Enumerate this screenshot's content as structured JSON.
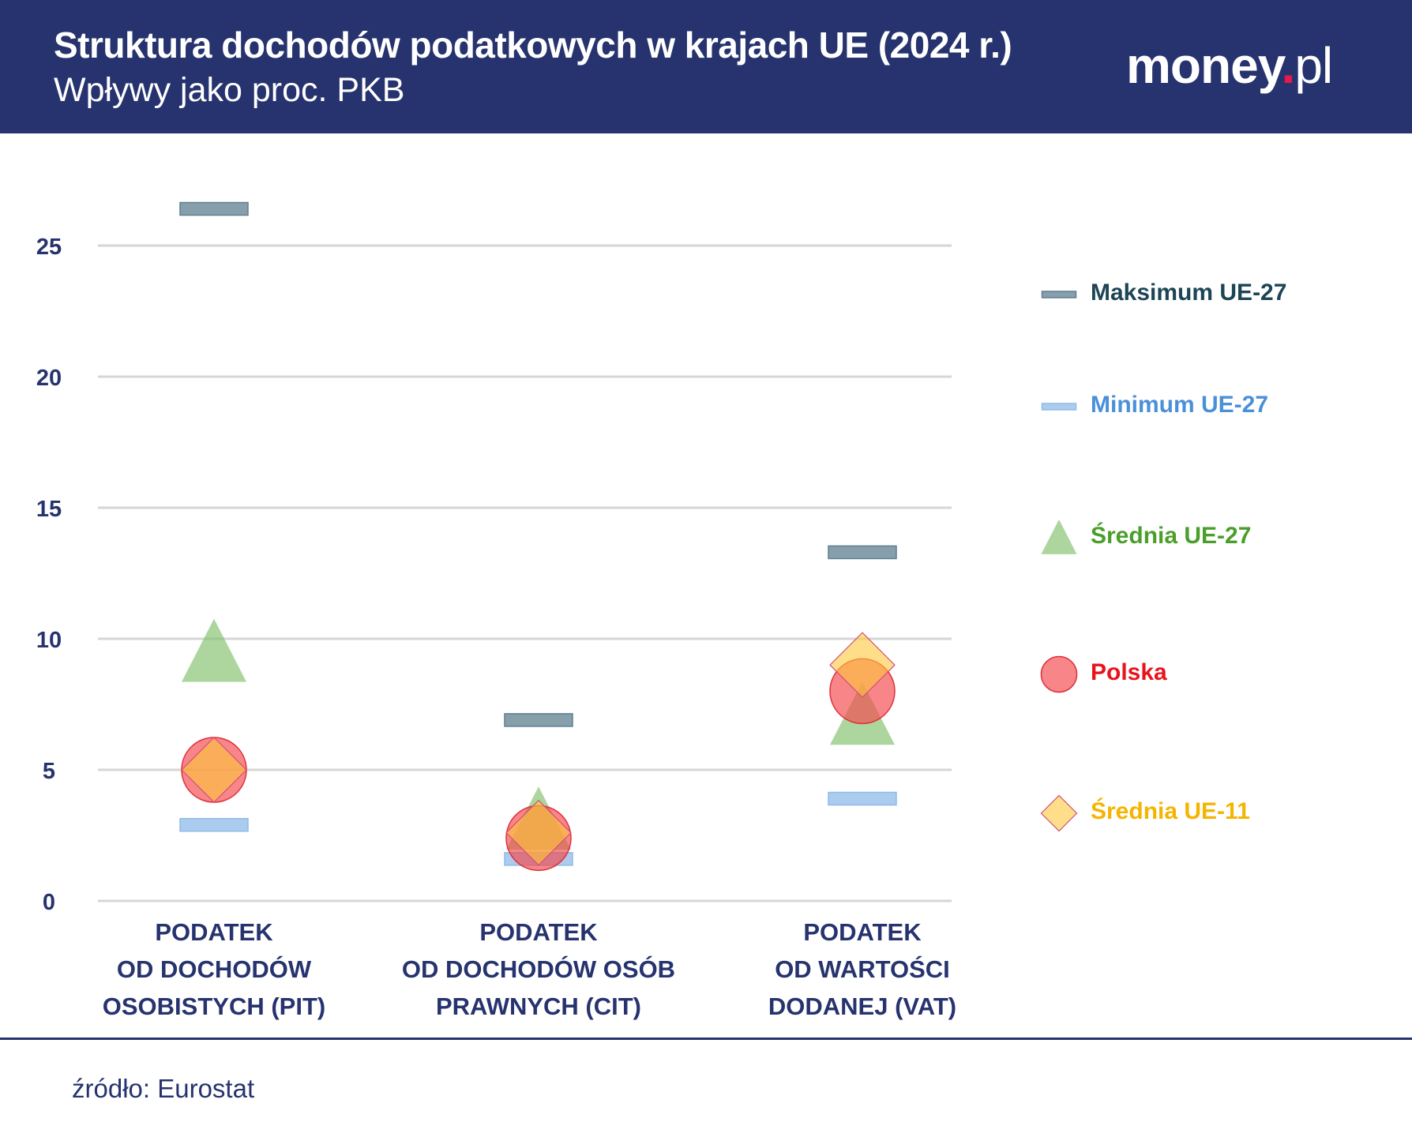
{
  "header": {
    "title": "Struktura dochodów podatkowych w krajach UE (2024 r.)",
    "subtitle": "Wpływy jako proc. PKB",
    "logo": "money.pl"
  },
  "footer": {
    "source": "źródło: Eurostat"
  },
  "chart_data": {
    "type": "scatter",
    "title": "Struktura dochodów podatkowych w krajach UE (2024 r.)",
    "subtitle": "Wpływy jako proc. PKB",
    "categories": [
      "PODATEK\nOD DOCHODÓW\nOSOBISTYCH (PIT)",
      "PODATEK\nOD DOCHODÓW OSÓB\nPRAWNYCH (CIT)",
      "PODATEK\nOD WARTOŚCI\nDODANEJ (VAT)"
    ],
    "yticks": [
      0,
      5,
      10,
      15,
      20,
      25
    ],
    "ylim": [
      0,
      27
    ],
    "grid": true,
    "legend_placement": "right",
    "series": [
      {
        "name": "Maksimum UE-27",
        "marker": "bar",
        "color": "#5f7f8f",
        "values": [
          26.4,
          6.9,
          13.3
        ]
      },
      {
        "name": "Minimum UE-27",
        "marker": "bar",
        "color": "#8fbbe8",
        "values": [
          2.9,
          1.6,
          3.9
        ]
      },
      {
        "name": "Średnia UE-27",
        "marker": "triangle",
        "color": "#7fc06a",
        "values": [
          9.5,
          3.1,
          7.1
        ]
      },
      {
        "name": "Polska",
        "marker": "circle",
        "color": "#f5454a",
        "values": [
          5.0,
          2.4,
          8.0
        ]
      },
      {
        "name": "Średnia UE-11",
        "marker": "diamond",
        "color": "#ffc83a",
        "values": [
          5.0,
          2.6,
          9.0
        ]
      }
    ],
    "legend_text_colors": [
      "#1d4556",
      "#4a90d9",
      "#4a9e2a",
      "#e8141c",
      "#f5b400"
    ]
  }
}
